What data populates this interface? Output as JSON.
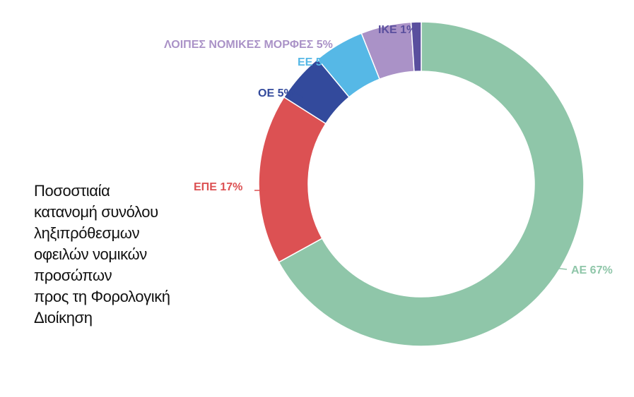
{
  "chart_data": {
    "type": "pie",
    "title": "Ποσοστιαία\nκατανομή συνόλου\nληξιπρόθεσμων\nοφειλών νομικών\nπροσώπων\nπρος τη Φορολογική\nΔιοίκηση",
    "categories": [
      "ΑΕ",
      "ΕΠΕ",
      "ΟΕ",
      "ΕΕ",
      "ΛΟΙΠΕΣ ΝΟΜΙΚΕΣ ΜΟΡΦΕΣ",
      "ΙΚΕ"
    ],
    "values": [
      67,
      17,
      5,
      5,
      5,
      1
    ],
    "labels": [
      "ΑΕ 67%",
      "ΕΠΕ 17%",
      "ΟΕ 5%",
      "ΕΕ 5%",
      "ΛΟΙΠΕΣ ΝΟΜΙΚΕΣ ΜΟΡΦΕΣ 5%",
      "ΙΚΕ 1%"
    ],
    "colors": [
      "#8fc6a9",
      "#dc5153",
      "#334a9c",
      "#56b8e6",
      "#aa92c7",
      "#5a4f9e"
    ],
    "label_colors": [
      "#8fc6a9",
      "#dc5153",
      "#334a9c",
      "#56b8e6",
      "#aa92c7",
      "#5a4f9e"
    ],
    "donut": true,
    "start": "12 o'clock",
    "direction": "clockwise"
  }
}
